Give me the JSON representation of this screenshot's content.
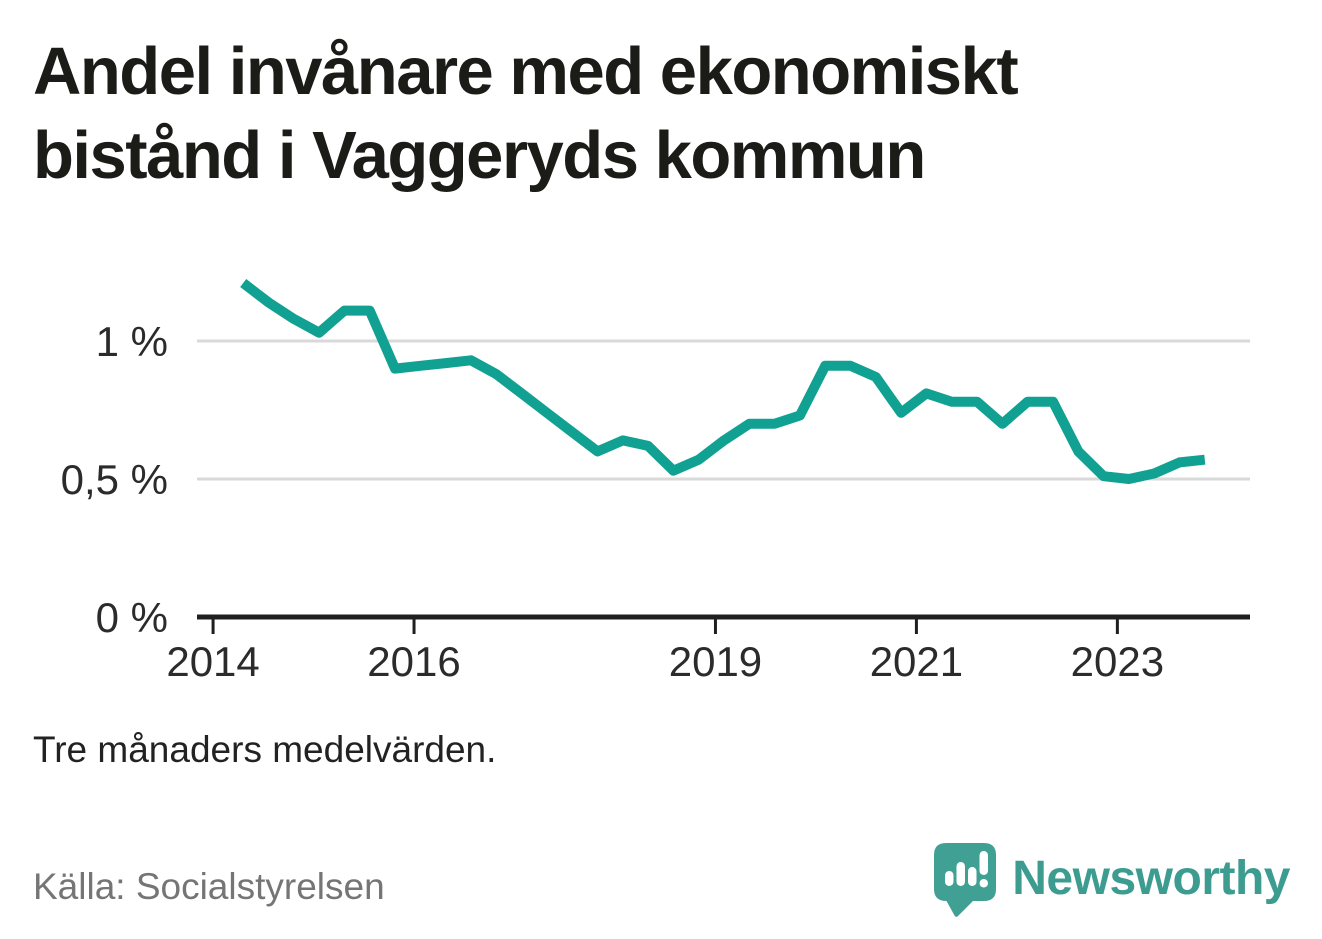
{
  "header": {
    "title": "Andel invånare med ekonomiskt bistånd i Vaggeryds kommun"
  },
  "footer": {
    "note": "Tre månaders medelvärden.",
    "source": "Källa: Socialstyrelsen"
  },
  "brand": {
    "name": "Newsworthy",
    "icon": "speech-bubble-bar-chart-icon"
  },
  "colors": {
    "line": "#11a192",
    "grid": "#d9d9d9",
    "axis": "#1f1f1f",
    "tick_label": "#2b2b2b",
    "title": "#1b1b18",
    "note": "#222222",
    "source": "#757575",
    "brand": "#3d9c90"
  },
  "chart_data": {
    "type": "line",
    "title": "Andel invånare med ekonomiskt bistånd i Vaggeryds kommun",
    "unit": "%",
    "note": "Tre månaders medelvärden.",
    "source": "Källa: Socialstyrelsen",
    "legend": "none",
    "grid": "horizontal-only",
    "ylim": [
      0,
      1.4
    ],
    "y_ticks": [
      {
        "label": "1 %",
        "value": 1
      },
      {
        "label": "0,5 %",
        "value": 0.5
      },
      {
        "label": "0 %",
        "value": 0
      }
    ],
    "x_ticks": [
      {
        "label": "2014",
        "year": 2014
      },
      {
        "label": "2016",
        "year": 2016
      },
      {
        "label": "2019",
        "year": 2019
      },
      {
        "label": "2021",
        "year": 2021
      },
      {
        "label": "2023",
        "year": 2023
      }
    ],
    "x": {
      "axis_range_years": [
        2013.84,
        2024.32
      ],
      "data_start_year": 2014.3,
      "data_end_year": 2023.87,
      "interval_years": 0.25
    },
    "series": [
      {
        "values": [
          1.21,
          1.14,
          1.08,
          1.03,
          1.11,
          1.11,
          0.9,
          0.91,
          0.92,
          0.93,
          0.88,
          0.81,
          0.74,
          0.67,
          0.6,
          0.64,
          0.62,
          0.53,
          0.57,
          0.64,
          0.7,
          0.7,
          0.73,
          0.91,
          0.91,
          0.87,
          0.74,
          0.81,
          0.78,
          0.78,
          0.7,
          0.78,
          0.78,
          0.6,
          0.51,
          0.5,
          0.52,
          0.56,
          0.57
        ]
      }
    ]
  }
}
